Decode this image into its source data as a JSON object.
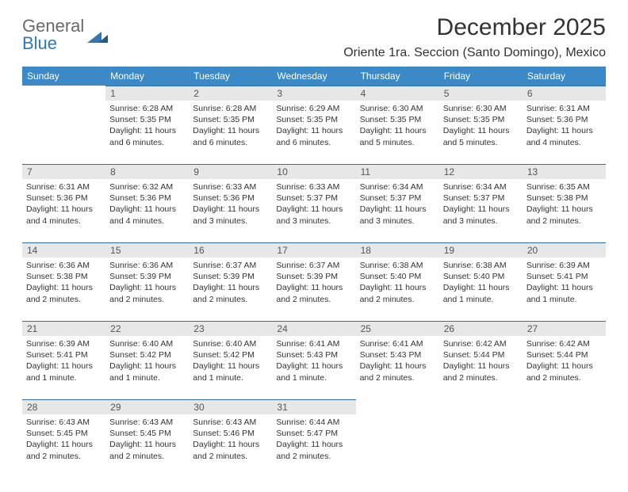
{
  "brand": {
    "line1": "General",
    "line2": "Blue"
  },
  "title": "December 2025",
  "location": "Oriente 1ra. Seccion (Santo Domingo), Mexico",
  "colors": {
    "header_bg": "#3b89c7",
    "header_text": "#ffffff",
    "daynum_bg": "#e7e7e7",
    "daynum_border": "#2f6fa3",
    "body_text": "#333333",
    "brand_gray": "#6a6a6a",
    "brand_blue": "#2f78b7",
    "page_bg": "#ffffff"
  },
  "weekdays": [
    "Sunday",
    "Monday",
    "Tuesday",
    "Wednesday",
    "Thursday",
    "Friday",
    "Saturday"
  ],
  "weeks": [
    [
      {
        "day": "",
        "lines": []
      },
      {
        "day": "1",
        "lines": [
          "Sunrise: 6:28 AM",
          "Sunset: 5:35 PM",
          "Daylight: 11 hours and 6 minutes."
        ]
      },
      {
        "day": "2",
        "lines": [
          "Sunrise: 6:28 AM",
          "Sunset: 5:35 PM",
          "Daylight: 11 hours and 6 minutes."
        ]
      },
      {
        "day": "3",
        "lines": [
          "Sunrise: 6:29 AM",
          "Sunset: 5:35 PM",
          "Daylight: 11 hours and 6 minutes."
        ]
      },
      {
        "day": "4",
        "lines": [
          "Sunrise: 6:30 AM",
          "Sunset: 5:35 PM",
          "Daylight: 11 hours and 5 minutes."
        ]
      },
      {
        "day": "5",
        "lines": [
          "Sunrise: 6:30 AM",
          "Sunset: 5:35 PM",
          "Daylight: 11 hours and 5 minutes."
        ]
      },
      {
        "day": "6",
        "lines": [
          "Sunrise: 6:31 AM",
          "Sunset: 5:36 PM",
          "Daylight: 11 hours and 4 minutes."
        ]
      }
    ],
    [
      {
        "day": "7",
        "lines": [
          "Sunrise: 6:31 AM",
          "Sunset: 5:36 PM",
          "Daylight: 11 hours and 4 minutes."
        ]
      },
      {
        "day": "8",
        "lines": [
          "Sunrise: 6:32 AM",
          "Sunset: 5:36 PM",
          "Daylight: 11 hours and 4 minutes."
        ]
      },
      {
        "day": "9",
        "lines": [
          "Sunrise: 6:33 AM",
          "Sunset: 5:36 PM",
          "Daylight: 11 hours and 3 minutes."
        ]
      },
      {
        "day": "10",
        "lines": [
          "Sunrise: 6:33 AM",
          "Sunset: 5:37 PM",
          "Daylight: 11 hours and 3 minutes."
        ]
      },
      {
        "day": "11",
        "lines": [
          "Sunrise: 6:34 AM",
          "Sunset: 5:37 PM",
          "Daylight: 11 hours and 3 minutes."
        ]
      },
      {
        "day": "12",
        "lines": [
          "Sunrise: 6:34 AM",
          "Sunset: 5:37 PM",
          "Daylight: 11 hours and 3 minutes."
        ]
      },
      {
        "day": "13",
        "lines": [
          "Sunrise: 6:35 AM",
          "Sunset: 5:38 PM",
          "Daylight: 11 hours and 2 minutes."
        ]
      }
    ],
    [
      {
        "day": "14",
        "lines": [
          "Sunrise: 6:36 AM",
          "Sunset: 5:38 PM",
          "Daylight: 11 hours and 2 minutes."
        ]
      },
      {
        "day": "15",
        "lines": [
          "Sunrise: 6:36 AM",
          "Sunset: 5:39 PM",
          "Daylight: 11 hours and 2 minutes."
        ]
      },
      {
        "day": "16",
        "lines": [
          "Sunrise: 6:37 AM",
          "Sunset: 5:39 PM",
          "Daylight: 11 hours and 2 minutes."
        ]
      },
      {
        "day": "17",
        "lines": [
          "Sunrise: 6:37 AM",
          "Sunset: 5:39 PM",
          "Daylight: 11 hours and 2 minutes."
        ]
      },
      {
        "day": "18",
        "lines": [
          "Sunrise: 6:38 AM",
          "Sunset: 5:40 PM",
          "Daylight: 11 hours and 2 minutes."
        ]
      },
      {
        "day": "19",
        "lines": [
          "Sunrise: 6:38 AM",
          "Sunset: 5:40 PM",
          "Daylight: 11 hours and 1 minute."
        ]
      },
      {
        "day": "20",
        "lines": [
          "Sunrise: 6:39 AM",
          "Sunset: 5:41 PM",
          "Daylight: 11 hours and 1 minute."
        ]
      }
    ],
    [
      {
        "day": "21",
        "lines": [
          "Sunrise: 6:39 AM",
          "Sunset: 5:41 PM",
          "Daylight: 11 hours and 1 minute."
        ]
      },
      {
        "day": "22",
        "lines": [
          "Sunrise: 6:40 AM",
          "Sunset: 5:42 PM",
          "Daylight: 11 hours and 1 minute."
        ]
      },
      {
        "day": "23",
        "lines": [
          "Sunrise: 6:40 AM",
          "Sunset: 5:42 PM",
          "Daylight: 11 hours and 1 minute."
        ]
      },
      {
        "day": "24",
        "lines": [
          "Sunrise: 6:41 AM",
          "Sunset: 5:43 PM",
          "Daylight: 11 hours and 1 minute."
        ]
      },
      {
        "day": "25",
        "lines": [
          "Sunrise: 6:41 AM",
          "Sunset: 5:43 PM",
          "Daylight: 11 hours and 2 minutes."
        ]
      },
      {
        "day": "26",
        "lines": [
          "Sunrise: 6:42 AM",
          "Sunset: 5:44 PM",
          "Daylight: 11 hours and 2 minutes."
        ]
      },
      {
        "day": "27",
        "lines": [
          "Sunrise: 6:42 AM",
          "Sunset: 5:44 PM",
          "Daylight: 11 hours and 2 minutes."
        ]
      }
    ],
    [
      {
        "day": "28",
        "lines": [
          "Sunrise: 6:43 AM",
          "Sunset: 5:45 PM",
          "Daylight: 11 hours and 2 minutes."
        ]
      },
      {
        "day": "29",
        "lines": [
          "Sunrise: 6:43 AM",
          "Sunset: 5:45 PM",
          "Daylight: 11 hours and 2 minutes."
        ]
      },
      {
        "day": "30",
        "lines": [
          "Sunrise: 6:43 AM",
          "Sunset: 5:46 PM",
          "Daylight: 11 hours and 2 minutes."
        ]
      },
      {
        "day": "31",
        "lines": [
          "Sunrise: 6:44 AM",
          "Sunset: 5:47 PM",
          "Daylight: 11 hours and 2 minutes."
        ]
      },
      {
        "day": "",
        "lines": []
      },
      {
        "day": "",
        "lines": []
      },
      {
        "day": "",
        "lines": []
      }
    ]
  ]
}
